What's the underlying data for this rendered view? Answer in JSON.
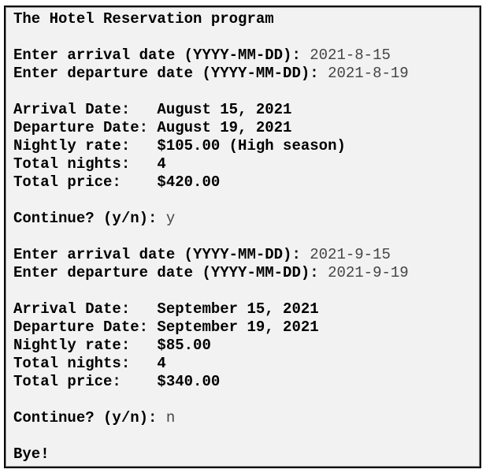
{
  "console": {
    "blocks": [
      [
        {
          "text": "The Hotel Reservation program"
        }
      ],
      [
        {
          "text": "Enter arrival date (YYYY-MM-DD):",
          "input": "2021-8-15"
        },
        {
          "text": "Enter departure date (YYYY-MM-DD):",
          "input": "2021-8-19"
        }
      ],
      [
        {
          "text": "Arrival Date:   August 15, 2021"
        },
        {
          "text": "Departure Date: August 19, 2021"
        },
        {
          "text": "Nightly rate:   $105.00 (High season)"
        },
        {
          "text": "Total nights:   4"
        },
        {
          "text": "Total price:    $420.00"
        }
      ],
      [
        {
          "text": "Continue? (y/n):",
          "input": "y"
        }
      ],
      [
        {
          "text": "Enter arrival date (YYYY-MM-DD):",
          "input": "2021-9-15"
        },
        {
          "text": "Enter departure date (YYYY-MM-DD):",
          "input": "2021-9-19"
        }
      ],
      [
        {
          "text": "Arrival Date:   September 15, 2021"
        },
        {
          "text": "Departure Date: September 19, 2021"
        },
        {
          "text": "Nightly rate:   $85.00"
        },
        {
          "text": "Total nights:   4"
        },
        {
          "text": "Total price:    $340.00"
        }
      ],
      [
        {
          "text": "Continue? (y/n):",
          "input": "n"
        }
      ],
      [
        {
          "text": "Bye!"
        }
      ]
    ]
  }
}
